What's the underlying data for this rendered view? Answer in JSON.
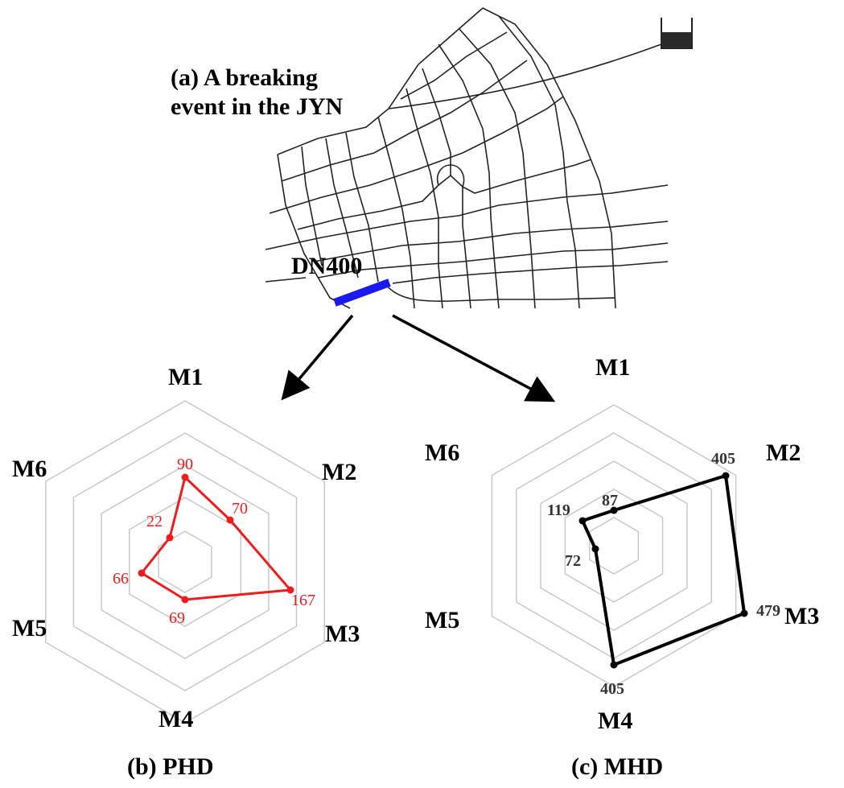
{
  "panel_a": {
    "title_line1": "(a)   A breaking",
    "title_line2": "event  in the JYN",
    "pipe_label": "DN400",
    "pipe_color": "#1a1aee",
    "tank_color": "#2a2a2a"
  },
  "panel_b": {
    "caption": "(b) PHD",
    "axis_labels": [
      "M1",
      "M2",
      "M3",
      "M4",
      "M5",
      "M6"
    ],
    "color": "#ee1c1c",
    "value_labels": [
      "90",
      "70",
      "167",
      "69",
      "66",
      "22"
    ]
  },
  "panel_c": {
    "caption": "(c) MHD",
    "axis_labels": [
      "M1",
      "M2",
      "M3",
      "M4",
      "M5",
      "M6"
    ],
    "color": "#000000",
    "value_labels": [
      "87",
      "405",
      "479",
      "405",
      "72",
      "119"
    ]
  },
  "colors": {
    "grid": "#c8c8c8",
    "network": "#222222",
    "arrow": "#000000"
  }
}
